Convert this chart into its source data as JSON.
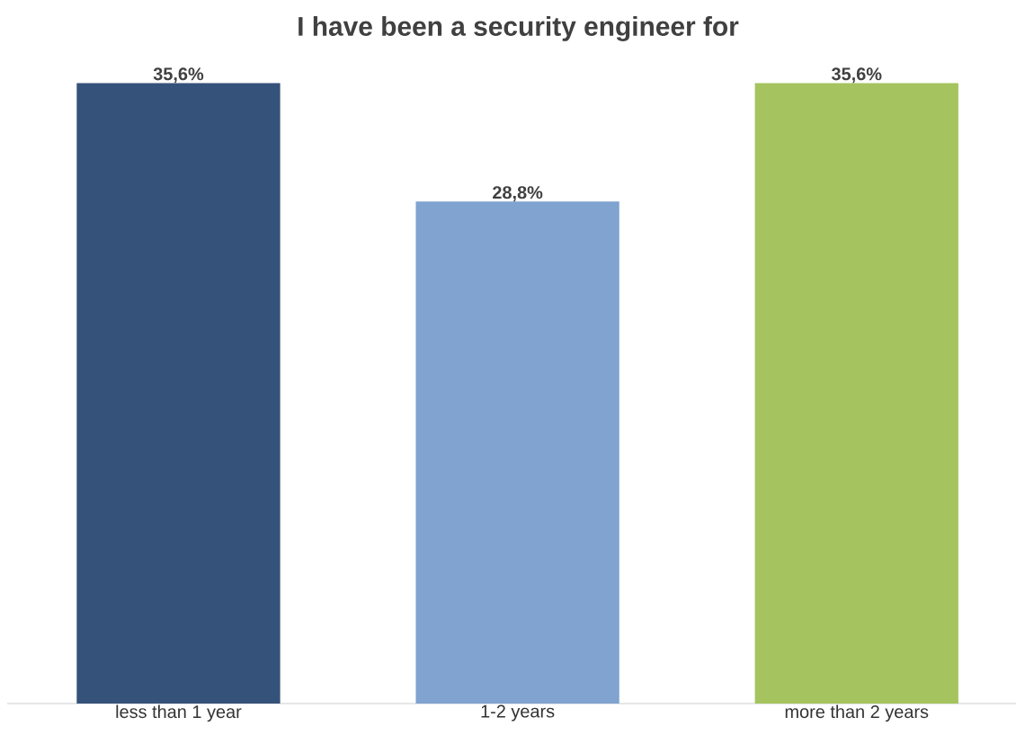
{
  "chart_data": {
    "type": "bar",
    "title": "I have been a security engineer for",
    "categories": [
      "less than 1 year",
      "1-2 years",
      "more than 2 years"
    ],
    "values": [
      35.6,
      28.8,
      35.6
    ],
    "colors": [
      "#35527a",
      "#80a3d0",
      "#a5c45f"
    ],
    "value_labels": [
      "35,6%",
      "28,8%",
      "35,6%"
    ]
  }
}
